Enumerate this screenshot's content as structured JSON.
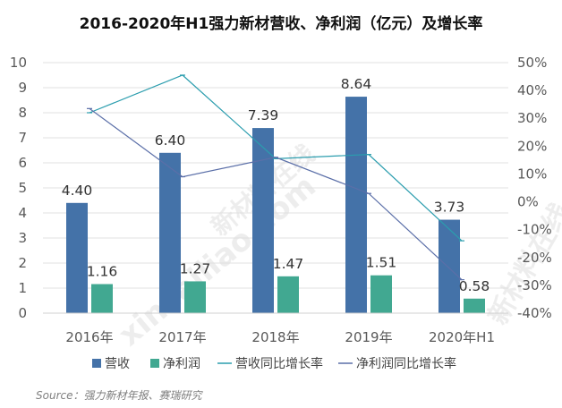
{
  "chart_data": {
    "type": "bar",
    "title": "2016-2020年H1强力新材营收、净利润（亿元）及增长率",
    "categories": [
      "2016年",
      "2017年",
      "2018年",
      "2019年",
      "2020年H1"
    ],
    "bar_series": [
      {
        "name": "营收",
        "values": [
          4.4,
          6.4,
          7.39,
          8.64,
          3.73
        ],
        "labels": [
          "4.40",
          "6.40",
          "7.39",
          "8.64",
          "3.73"
        ],
        "color": "#4472a8"
      },
      {
        "name": "净利润",
        "values": [
          1.16,
          1.27,
          1.47,
          1.51,
          0.58
        ],
        "labels": [
          "1.16",
          "1.27",
          "1.47",
          "1.51",
          "0.58"
        ],
        "color": "#41a891"
      }
    ],
    "line_series": [
      {
        "name": "营收同比增长率",
        "values": [
          32,
          45.5,
          15.5,
          17,
          -14
        ],
        "color": "#2b9dae"
      },
      {
        "name": "净利润同比增长率",
        "values": [
          33.5,
          9,
          16,
          3,
          -28
        ],
        "color": "#5b6fa8"
      }
    ],
    "y_left": {
      "min": 0,
      "max": 10,
      "ticks": [
        "0",
        "1",
        "2",
        "3",
        "4",
        "5",
        "6",
        "7",
        "8",
        "9",
        "10"
      ]
    },
    "y_right": {
      "min": -40,
      "max": 50,
      "ticks": [
        "-40%",
        "-30%",
        "-20%",
        "-10%",
        "0%",
        "10%",
        "20%",
        "30%",
        "40%",
        "50%"
      ]
    },
    "legend_position": "bottom",
    "grid": true
  },
  "source": "Source：强力新材年报、赛瑞研究",
  "watermark": [
    "新材料在线",
    "xincailiao.com"
  ]
}
